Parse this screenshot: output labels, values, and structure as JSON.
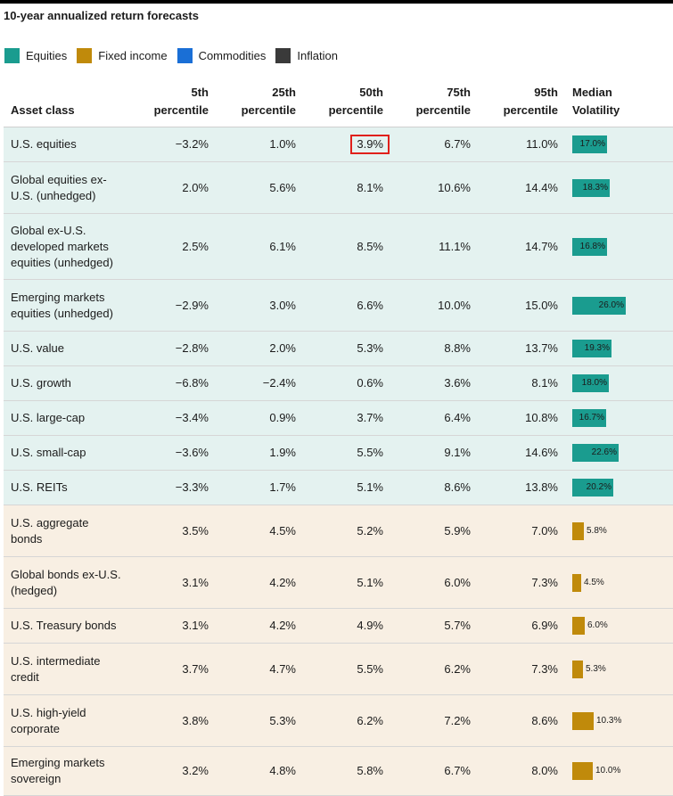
{
  "title": "10-year annualized return forecasts",
  "legend": [
    {
      "label": "Equities",
      "color": "#1a9c8f"
    },
    {
      "label": "Fixed income",
      "color": "#c08a0b"
    },
    {
      "label": "Commodities",
      "color": "#1a6fd6"
    },
    {
      "label": "Inflation",
      "color": "#3a3a3a"
    }
  ],
  "headers": {
    "asset": "Asset class",
    "p5": [
      "5th",
      "percentile"
    ],
    "p25": [
      "25th",
      "percentile"
    ],
    "p50": [
      "50th",
      "percentile"
    ],
    "p75": [
      "75th",
      "percentile"
    ],
    "p95": [
      "95th",
      "percentile"
    ],
    "vol": [
      "Median",
      "Volatility"
    ]
  },
  "colors": {
    "equities_bar": "#1a9c8f",
    "fixed_bar": "#c08a0b",
    "highlight_box": "#e0201b"
  },
  "rows": [
    {
      "group": "equities",
      "name": [
        "U.S. equities"
      ],
      "p5": "−3.2%",
      "p25": "1.0%",
      "p50": "3.9%",
      "p75": "6.7%",
      "p95": "11.0%",
      "vol": 17.0,
      "vol_label": "17.0%",
      "highlight": true
    },
    {
      "group": "equities",
      "name": [
        "Global equities ex-",
        "U.S. (unhedged)"
      ],
      "p5": "2.0%",
      "p25": "5.6%",
      "p50": "8.1%",
      "p75": "10.6%",
      "p95": "14.4%",
      "vol": 18.3,
      "vol_label": "18.3%"
    },
    {
      "group": "equities",
      "name": [
        "Global ex-U.S.",
        "developed markets",
        "equities (unhedged)"
      ],
      "p5": "2.5%",
      "p25": "6.1%",
      "p50": "8.5%",
      "p75": "11.1%",
      "p95": "14.7%",
      "vol": 16.8,
      "vol_label": "16.8%"
    },
    {
      "group": "equities",
      "name": [
        "Emerging markets",
        "equities (unhedged)"
      ],
      "p5": "−2.9%",
      "p25": "3.0%",
      "p50": "6.6%",
      "p75": "10.0%",
      "p95": "15.0%",
      "vol": 26.0,
      "vol_label": "26.0%"
    },
    {
      "group": "equities",
      "name": [
        "U.S. value"
      ],
      "p5": "−2.8%",
      "p25": "2.0%",
      "p50": "5.3%",
      "p75": "8.8%",
      "p95": "13.7%",
      "vol": 19.3,
      "vol_label": "19.3%"
    },
    {
      "group": "equities",
      "name": [
        "U.S. growth"
      ],
      "p5": "−6.8%",
      "p25": "−2.4%",
      "p50": "0.6%",
      "p75": "3.6%",
      "p95": "8.1%",
      "vol": 18.0,
      "vol_label": "18.0%"
    },
    {
      "group": "equities",
      "name": [
        "U.S. large-cap"
      ],
      "p5": "−3.4%",
      "p25": "0.9%",
      "p50": "3.7%",
      "p75": "6.4%",
      "p95": "10.8%",
      "vol": 16.7,
      "vol_label": "16.7%"
    },
    {
      "group": "equities",
      "name": [
        "U.S. small-cap"
      ],
      "p5": "−3.6%",
      "p25": "1.9%",
      "p50": "5.5%",
      "p75": "9.1%",
      "p95": "14.6%",
      "vol": 22.6,
      "vol_label": "22.6%"
    },
    {
      "group": "equities",
      "name": [
        "U.S. REITs"
      ],
      "p5": "−3.3%",
      "p25": "1.7%",
      "p50": "5.1%",
      "p75": "8.6%",
      "p95": "13.8%",
      "vol": 20.2,
      "vol_label": "20.2%"
    },
    {
      "group": "fixed",
      "name": [
        "U.S. aggregate",
        "bonds"
      ],
      "p5": "3.5%",
      "p25": "4.5%",
      "p50": "5.2%",
      "p75": "5.9%",
      "p95": "7.0%",
      "vol": 5.8,
      "vol_label": "5.8%"
    },
    {
      "group": "fixed",
      "name": [
        "Global bonds ex-U.S.",
        "(hedged)"
      ],
      "p5": "3.1%",
      "p25": "4.2%",
      "p50": "5.1%",
      "p75": "6.0%",
      "p95": "7.3%",
      "vol": 4.5,
      "vol_label": "4.5%"
    },
    {
      "group": "fixed",
      "name": [
        "U.S. Treasury bonds"
      ],
      "p5": "3.1%",
      "p25": "4.2%",
      "p50": "4.9%",
      "p75": "5.7%",
      "p95": "6.9%",
      "vol": 6.0,
      "vol_label": "6.0%"
    },
    {
      "group": "fixed",
      "name": [
        "U.S. intermediate",
        "credit"
      ],
      "p5": "3.7%",
      "p25": "4.7%",
      "p50": "5.5%",
      "p75": "6.2%",
      "p95": "7.3%",
      "vol": 5.3,
      "vol_label": "5.3%"
    },
    {
      "group": "fixed",
      "name": [
        "U.S. high-yield",
        "corporate"
      ],
      "p5": "3.8%",
      "p25": "5.3%",
      "p50": "6.2%",
      "p75": "7.2%",
      "p95": "8.6%",
      "vol": 10.3,
      "vol_label": "10.3%"
    },
    {
      "group": "fixed",
      "name": [
        "Emerging markets",
        "sovereign"
      ],
      "p5": "3.2%",
      "p25": "4.8%",
      "p50": "5.8%",
      "p75": "6.7%",
      "p95": "8.0%",
      "vol": 10.0,
      "vol_label": "10.0%"
    }
  ]
}
